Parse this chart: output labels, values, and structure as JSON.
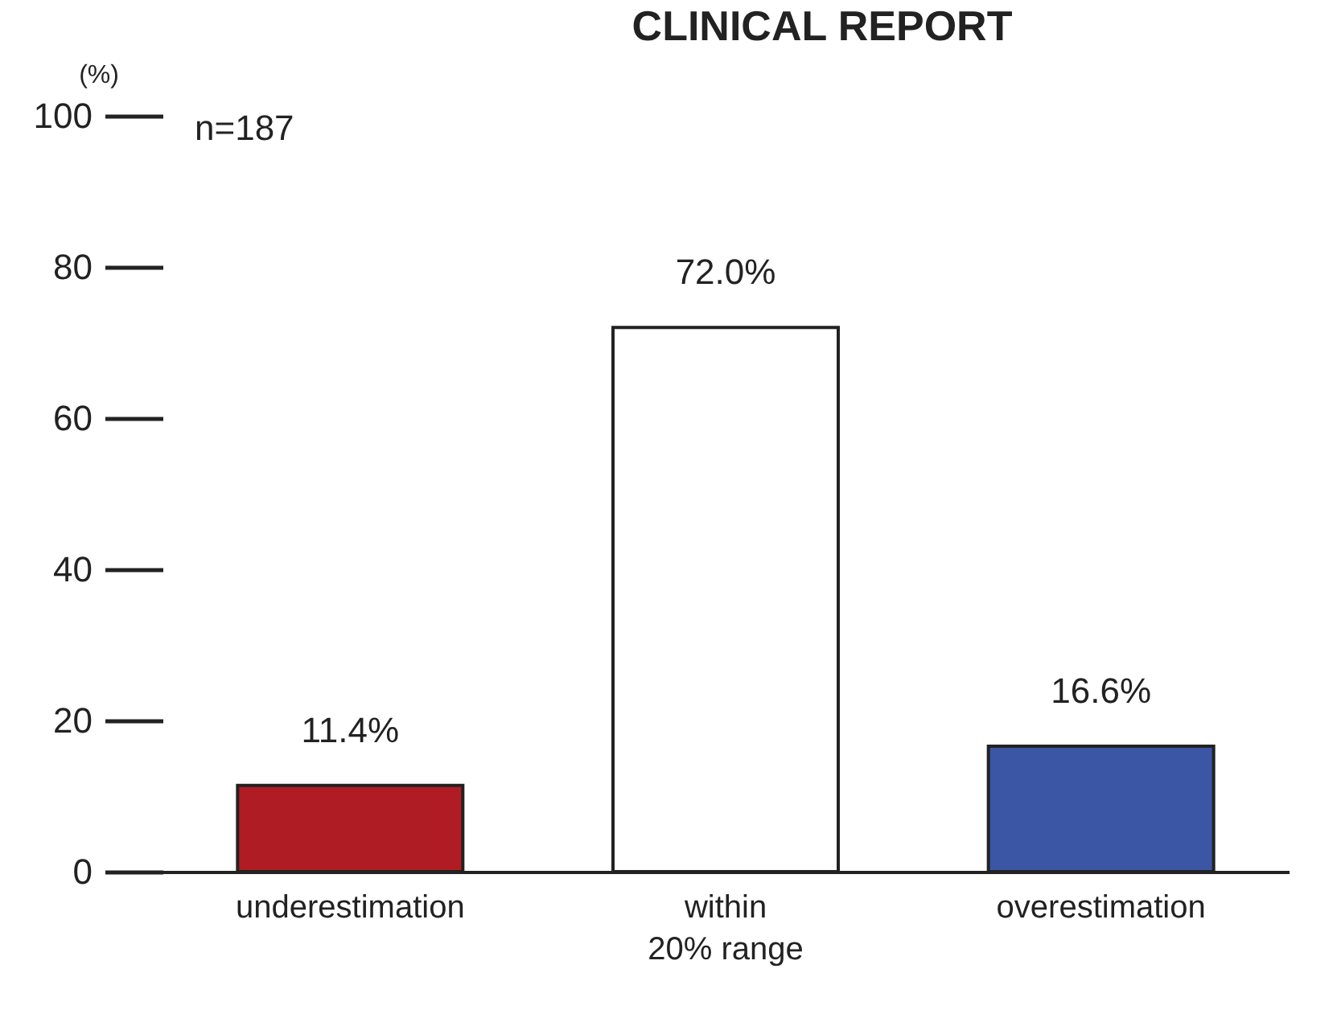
{
  "chart_data": {
    "type": "bar",
    "title": "CLINICAL REPORT",
    "ylabel": "(%)",
    "annotations": [
      "n=187"
    ],
    "categories": [
      "underestimation",
      "within\n20% range",
      "overestimation"
    ],
    "values": [
      11.4,
      72.0,
      16.6
    ],
    "colors": [
      "#b01c24",
      "#ffffff",
      "#3a56a4"
    ],
    "value_labels": [
      "11.4%",
      "72.0%",
      "16.6%"
    ],
    "ylim": [
      0,
      100
    ],
    "yticks": [
      0,
      20,
      40,
      60,
      80,
      100
    ],
    "grid": false,
    "legend": false
  }
}
